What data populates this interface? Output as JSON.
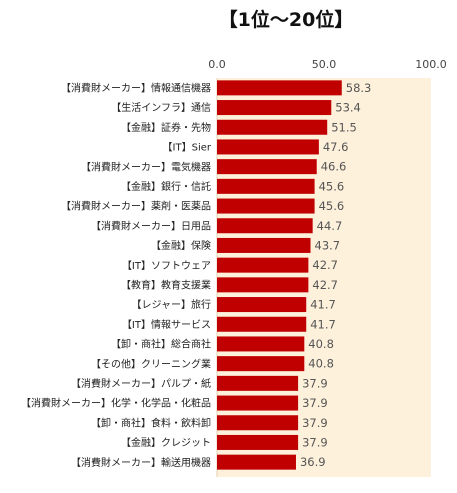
{
  "chart_data": {
    "type": "bar",
    "orientation": "horizontal",
    "title": "【1位〜20位】",
    "xlim": [
      0,
      100
    ],
    "xticks": [
      "0.0",
      "50.0",
      "100.0"
    ],
    "grid": false,
    "legend": "none",
    "colors": {
      "bar": "#c00000",
      "plot_bg": "#fdf1dc",
      "label_bg": "#ffffff"
    },
    "categories": [
      "【消費財メーカー】情報通信機器",
      "【生活インフラ】通信",
      "【金融】証券・先物",
      "【IT】Sier",
      "【消費財メーカー】電気機器",
      "【金融】銀行・信託",
      "【消費財メーカー】薬剤・医薬品",
      "【消費財メーカー】日用品",
      "【金融】保険",
      "【IT】ソフトウェア",
      "【教育】教育支援業",
      "【レジャー】旅行",
      "【IT】情報サービス",
      "【卸・商社】総合商社",
      "【その他】クリーニング業",
      "【消費財メーカー】パルプ・紙",
      "【消費財メーカー】化学・化学品・化粧品",
      "【卸・商社】食料・飲料卸",
      "【金融】クレジット",
      "【消費財メーカー】輸送用機器"
    ],
    "values": [
      58.3,
      53.4,
      51.5,
      47.6,
      46.6,
      45.6,
      45.6,
      44.7,
      43.7,
      42.7,
      42.7,
      41.7,
      41.7,
      40.8,
      40.8,
      37.9,
      37.9,
      37.9,
      37.9,
      36.9
    ],
    "value_labels": [
      "58.3",
      "53.4",
      "51.5",
      "47.6",
      "46.6",
      "45.6",
      "45.6",
      "44.7",
      "43.7",
      "42.7",
      "42.7",
      "41.7",
      "41.7",
      "40.8",
      "40.8",
      "37.9",
      "37.9",
      "37.9",
      "37.9",
      "36.9"
    ]
  }
}
